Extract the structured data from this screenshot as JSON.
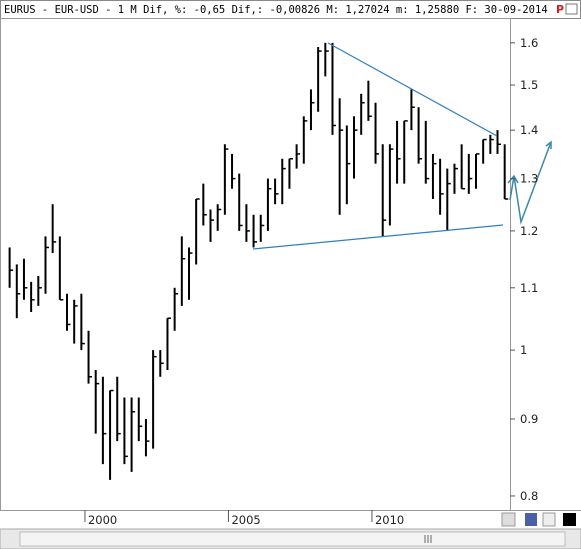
{
  "chart_data": {
    "type": "ohlc",
    "title": "EURUS - EUR-USD -  1 M Dif, %: -0,65 Dif,: -0,00826 M: 1,27024 m: 1,25880 F: 30-09-2014",
    "x": [
      1997.375,
      1997.625,
      1997.875,
      1998.125,
      1998.375,
      1998.625,
      1998.875,
      1999.125,
      1999.375,
      1999.625,
      1999.875,
      2000.125,
      2000.375,
      2000.625,
      2000.875,
      2001.125,
      2001.375,
      2001.625,
      2001.875,
      2002.125,
      2002.375,
      2002.625,
      2002.875,
      2003.125,
      2003.375,
      2003.625,
      2003.875,
      2004.125,
      2004.375,
      2004.625,
      2004.875,
      2005.125,
      2005.375,
      2005.625,
      2005.875,
      2006.125,
      2006.375,
      2006.625,
      2006.875,
      2007.125,
      2007.375,
      2007.625,
      2007.875,
      2008.125,
      2008.375,
      2008.625,
      2008.875,
      2009.125,
      2009.375,
      2009.625,
      2009.875,
      2010.125,
      2010.375,
      2010.625,
      2010.875,
      2011.125,
      2011.375,
      2011.625,
      2011.875,
      2012.125,
      2012.375,
      2012.625,
      2012.875,
      2013.125,
      2013.375,
      2013.625,
      2013.875,
      2014.125,
      2014.375,
      2014.625
    ],
    "high": [
      1.17,
      1.14,
      1.15,
      1.11,
      1.12,
      1.19,
      1.25,
      1.19,
      1.09,
      1.08,
      1.09,
      1.03,
      0.97,
      0.96,
      0.94,
      0.96,
      0.93,
      0.93,
      0.93,
      0.9,
      1.0,
      1.0,
      1.05,
      1.1,
      1.19,
      1.17,
      1.26,
      1.29,
      1.24,
      1.25,
      1.37,
      1.35,
      1.31,
      1.25,
      1.23,
      1.23,
      1.3,
      1.3,
      1.34,
      1.34,
      1.37,
      1.43,
      1.49,
      1.59,
      1.6,
      1.6,
      1.47,
      1.41,
      1.43,
      1.48,
      1.51,
      1.46,
      1.37,
      1.37,
      1.42,
      1.42,
      1.49,
      1.45,
      1.42,
      1.35,
      1.34,
      1.32,
      1.33,
      1.37,
      1.35,
      1.35,
      1.38,
      1.39,
      1.4,
      1.37
    ],
    "low": [
      1.1,
      1.05,
      1.08,
      1.06,
      1.07,
      1.09,
      1.16,
      1.08,
      1.03,
      1.01,
      1.0,
      0.95,
      0.88,
      0.84,
      0.82,
      0.87,
      0.84,
      0.83,
      0.87,
      0.85,
      0.86,
      0.96,
      0.97,
      1.03,
      1.07,
      1.08,
      1.14,
      1.21,
      1.18,
      1.2,
      1.23,
      1.28,
      1.2,
      1.18,
      1.17,
      1.18,
      1.2,
      1.25,
      1.25,
      1.28,
      1.32,
      1.33,
      1.4,
      1.44,
      1.52,
      1.39,
      1.23,
      1.25,
      1.3,
      1.39,
      1.42,
      1.33,
      1.19,
      1.21,
      1.29,
      1.29,
      1.4,
      1.33,
      1.29,
      1.26,
      1.23,
      1.2,
      1.27,
      1.28,
      1.27,
      1.28,
      1.33,
      1.35,
      1.35,
      1.26
    ],
    "close": [
      1.13,
      1.09,
      1.1,
      1.08,
      1.1,
      1.17,
      1.18,
      1.08,
      1.04,
      1.07,
      1.01,
      0.96,
      0.95,
      0.88,
      0.94,
      0.88,
      0.85,
      0.91,
      0.89,
      0.87,
      0.99,
      0.98,
      1.05,
      1.09,
      1.15,
      1.16,
      1.26,
      1.23,
      1.22,
      1.24,
      1.36,
      1.3,
      1.21,
      1.2,
      1.18,
      1.21,
      1.28,
      1.27,
      1.32,
      1.34,
      1.35,
      1.42,
      1.46,
      1.58,
      1.58,
      1.41,
      1.4,
      1.33,
      1.4,
      1.46,
      1.43,
      1.35,
      1.22,
      1.36,
      1.34,
      1.42,
      1.45,
      1.34,
      1.3,
      1.33,
      1.27,
      1.29,
      1.32,
      1.28,
      1.3,
      1.35,
      1.38,
      1.38,
      1.37,
      1.26
    ],
    "color": "#000000",
    "log_scale": true,
    "xlim": [
      1997.04,
      2014.81
    ],
    "xticks": [
      2000,
      2005,
      2010
    ],
    "ylim": [
      0.783,
      1.662
    ],
    "yticks": [
      0.8,
      0.9,
      1,
      1.1,
      1.2,
      1.3,
      1.4,
      1.5,
      1.6
    ]
  }
}
